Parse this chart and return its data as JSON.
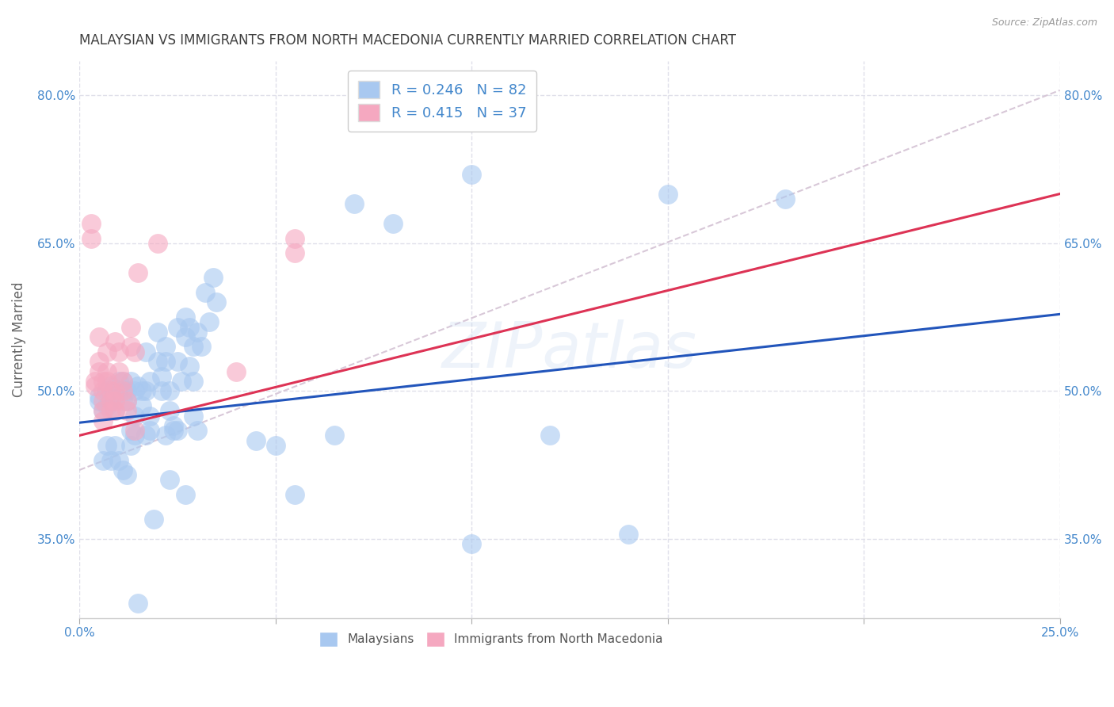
{
  "title": "MALAYSIAN VS IMMIGRANTS FROM NORTH MACEDONIA CURRENTLY MARRIED CORRELATION CHART",
  "source": "Source: ZipAtlas.com",
  "ylabel": "Currently Married",
  "x_min": 0.0,
  "x_max": 0.25,
  "y_min": 0.27,
  "y_max": 0.835,
  "x_ticks": [
    0.0,
    0.05,
    0.1,
    0.15,
    0.2,
    0.25
  ],
  "x_tick_labels": [
    "0.0%",
    "",
    "",
    "",
    "",
    "25.0%"
  ],
  "y_ticks": [
    0.35,
    0.5,
    0.65,
    0.8
  ],
  "y_tick_labels": [
    "35.0%",
    "50.0%",
    "65.0%",
    "80.0%"
  ],
  "watermark": "ZIPatlas",
  "blue_color": "#a8c8f0",
  "pink_color": "#f5a8c0",
  "blue_line_color": "#2255bb",
  "pink_line_color": "#dd3355",
  "ref_line_color": "#d8c8d8",
  "grid_color": "#e0e0ea",
  "background_color": "#ffffff",
  "title_color": "#404040",
  "axis_label_color": "#4488cc",
  "blue_scatter": [
    [
      0.005,
      0.495
    ],
    [
      0.005,
      0.49
    ],
    [
      0.006,
      0.48
    ],
    [
      0.007,
      0.5
    ],
    [
      0.007,
      0.485
    ],
    [
      0.008,
      0.505
    ],
    [
      0.009,
      0.495
    ],
    [
      0.009,
      0.48
    ],
    [
      0.01,
      0.51
    ],
    [
      0.01,
      0.5
    ],
    [
      0.011,
      0.49
    ],
    [
      0.011,
      0.51
    ],
    [
      0.012,
      0.5
    ],
    [
      0.012,
      0.49
    ],
    [
      0.013,
      0.51
    ],
    [
      0.013,
      0.46
    ],
    [
      0.014,
      0.5
    ],
    [
      0.014,
      0.475
    ],
    [
      0.015,
      0.505
    ],
    [
      0.016,
      0.5
    ],
    [
      0.016,
      0.485
    ],
    [
      0.017,
      0.54
    ],
    [
      0.017,
      0.5
    ],
    [
      0.018,
      0.51
    ],
    [
      0.018,
      0.475
    ],
    [
      0.02,
      0.56
    ],
    [
      0.02,
      0.53
    ],
    [
      0.021,
      0.515
    ],
    [
      0.021,
      0.5
    ],
    [
      0.022,
      0.545
    ],
    [
      0.022,
      0.53
    ],
    [
      0.023,
      0.5
    ],
    [
      0.023,
      0.48
    ],
    [
      0.024,
      0.46
    ],
    [
      0.025,
      0.565
    ],
    [
      0.025,
      0.53
    ],
    [
      0.026,
      0.51
    ],
    [
      0.027,
      0.575
    ],
    [
      0.027,
      0.555
    ],
    [
      0.028,
      0.525
    ],
    [
      0.028,
      0.565
    ],
    [
      0.029,
      0.545
    ],
    [
      0.029,
      0.51
    ],
    [
      0.03,
      0.56
    ],
    [
      0.031,
      0.545
    ],
    [
      0.032,
      0.6
    ],
    [
      0.033,
      0.57
    ],
    [
      0.034,
      0.615
    ],
    [
      0.035,
      0.59
    ],
    [
      0.07,
      0.69
    ],
    [
      0.08,
      0.67
    ],
    [
      0.1,
      0.72
    ],
    [
      0.15,
      0.7
    ],
    [
      0.18,
      0.695
    ],
    [
      0.006,
      0.43
    ],
    [
      0.007,
      0.445
    ],
    [
      0.008,
      0.43
    ],
    [
      0.009,
      0.445
    ],
    [
      0.01,
      0.43
    ],
    [
      0.011,
      0.42
    ],
    [
      0.012,
      0.415
    ],
    [
      0.013,
      0.445
    ],
    [
      0.014,
      0.455
    ],
    [
      0.017,
      0.455
    ],
    [
      0.018,
      0.46
    ],
    [
      0.019,
      0.37
    ],
    [
      0.022,
      0.455
    ],
    [
      0.023,
      0.41
    ],
    [
      0.024,
      0.465
    ],
    [
      0.025,
      0.46
    ],
    [
      0.027,
      0.395
    ],
    [
      0.029,
      0.475
    ],
    [
      0.03,
      0.46
    ],
    [
      0.045,
      0.45
    ],
    [
      0.05,
      0.445
    ],
    [
      0.055,
      0.395
    ],
    [
      0.065,
      0.455
    ],
    [
      0.1,
      0.345
    ],
    [
      0.12,
      0.455
    ],
    [
      0.14,
      0.355
    ],
    [
      0.015,
      0.285
    ]
  ],
  "pink_scatter": [
    [
      0.003,
      0.67
    ],
    [
      0.003,
      0.655
    ],
    [
      0.004,
      0.51
    ],
    [
      0.004,
      0.505
    ],
    [
      0.005,
      0.555
    ],
    [
      0.005,
      0.53
    ],
    [
      0.005,
      0.52
    ],
    [
      0.006,
      0.51
    ],
    [
      0.006,
      0.5
    ],
    [
      0.006,
      0.49
    ],
    [
      0.006,
      0.48
    ],
    [
      0.006,
      0.47
    ],
    [
      0.007,
      0.54
    ],
    [
      0.007,
      0.52
    ],
    [
      0.007,
      0.51
    ],
    [
      0.008,
      0.5
    ],
    [
      0.008,
      0.49
    ],
    [
      0.008,
      0.48
    ],
    [
      0.009,
      0.55
    ],
    [
      0.009,
      0.5
    ],
    [
      0.009,
      0.49
    ],
    [
      0.009,
      0.48
    ],
    [
      0.01,
      0.54
    ],
    [
      0.01,
      0.52
    ],
    [
      0.011,
      0.51
    ],
    [
      0.011,
      0.5
    ],
    [
      0.012,
      0.49
    ],
    [
      0.012,
      0.48
    ],
    [
      0.013,
      0.565
    ],
    [
      0.013,
      0.545
    ],
    [
      0.014,
      0.54
    ],
    [
      0.014,
      0.46
    ],
    [
      0.015,
      0.62
    ],
    [
      0.02,
      0.65
    ],
    [
      0.04,
      0.52
    ],
    [
      0.055,
      0.655
    ],
    [
      0.055,
      0.64
    ]
  ],
  "blue_line_x": [
    0.0,
    0.25
  ],
  "blue_line_y": [
    0.468,
    0.578
  ],
  "pink_line_x": [
    0.0,
    0.25
  ],
  "pink_line_y": [
    0.455,
    0.7
  ],
  "ref_line_x": [
    0.0,
    0.25
  ],
  "ref_line_y": [
    0.42,
    0.805
  ]
}
